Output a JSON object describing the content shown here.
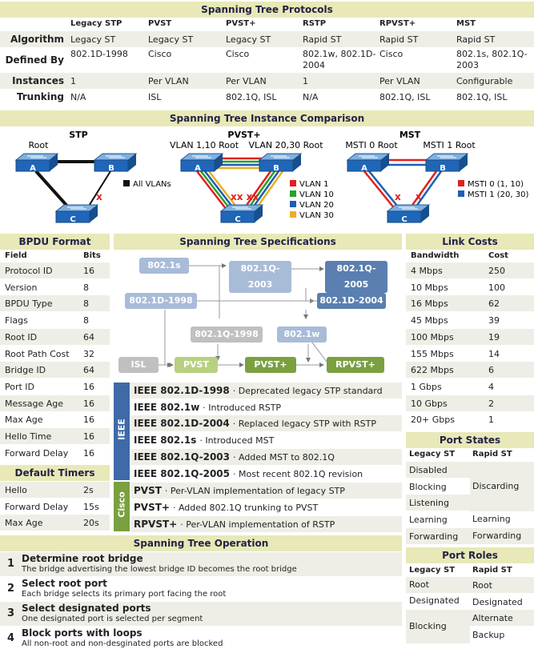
{
  "proto": {
    "title": "Spanning Tree Protocols",
    "cols": [
      "Legacy STP",
      "PVST",
      "PVST+",
      "RSTP",
      "RPVST+",
      "MST"
    ],
    "rows": [
      {
        "label": "Algorithm",
        "vals": [
          "Legacy ST",
          "Legacy ST",
          "Legacy ST",
          "Rapid ST",
          "Rapid ST",
          "Rapid ST"
        ]
      },
      {
        "label": "Defined By",
        "vals": [
          "802.1D-1998",
          "Cisco",
          "Cisco",
          "802.1w, 802.1D-2004",
          "Cisco",
          "802.1s, 802.1Q-2003"
        ]
      },
      {
        "label": "Instances",
        "vals": [
          "1",
          "Per VLAN",
          "Per VLAN",
          "1",
          "Per VLAN",
          "Configurable"
        ]
      },
      {
        "label": "Trunking",
        "vals": [
          "N/A",
          "ISL",
          "802.1Q, ISL",
          "N/A",
          "802.1Q, ISL",
          "802.1Q, ISL"
        ]
      }
    ]
  },
  "inst": {
    "title": "Spanning Tree Instance Comparison",
    "stp": {
      "title": "STP",
      "root": "Root",
      "legend": "All VLANs"
    },
    "pvst": {
      "title": "PVST+",
      "root1": "VLAN 1,10 Root",
      "root2": "VLAN 20,30 Root",
      "legend": [
        "VLAN 1",
        "VLAN 10",
        "VLAN 20",
        "VLAN 30"
      ]
    },
    "mst": {
      "title": "MST",
      "root1": "MSTI 0 Root",
      "root2": "MSTI 1 Root",
      "legend": [
        "MSTI 0 (1, 10)",
        "MSTI 1 (20, 30)"
      ]
    },
    "sw": [
      "A",
      "B",
      "C"
    ],
    "colors": {
      "red": "#e02020",
      "green": "#2aa02a",
      "blue": "#1e5fb0",
      "yellow": "#e8b020"
    }
  },
  "bpdu": {
    "title": "BPDU Format",
    "h1": "Field",
    "h2": "Bits",
    "rows": [
      [
        "Protocol ID",
        "16"
      ],
      [
        "Version",
        "8"
      ],
      [
        "BPDU Type",
        "8"
      ],
      [
        "Flags",
        "8"
      ],
      [
        "Root ID",
        "64"
      ],
      [
        "Root Path Cost",
        "32"
      ],
      [
        "Bridge ID",
        "64"
      ],
      [
        "Port ID",
        "16"
      ],
      [
        "Message Age",
        "16"
      ],
      [
        "Max Age",
        "16"
      ],
      [
        "Hello Time",
        "16"
      ],
      [
        "Forward Delay",
        "16"
      ]
    ]
  },
  "timers": {
    "title": "Default Timers",
    "rows": [
      [
        "Hello",
        "2s"
      ],
      [
        "Forward Delay",
        "15s"
      ],
      [
        "Max Age",
        "20s"
      ]
    ]
  },
  "spec": {
    "title": "Spanning Tree Specifications",
    "boxes": [
      "802.1s",
      "802.1Q-2003",
      "802.1Q-2005",
      "802.1D-1998",
      "802.1D-2004",
      "802.1Q-1998",
      "802.1w",
      "ISL",
      "PVST",
      "PVST+",
      "RPVST+"
    ],
    "ieee_label": "IEEE",
    "cisco_label": "Cisco",
    "items": [
      {
        "name": "IEEE 802.1D-1998",
        "desc": "· Deprecated legacy STP standard"
      },
      {
        "name": "IEEE 802.1w",
        "desc": "· Introduced RSTP"
      },
      {
        "name": "IEEE 802.1D-2004",
        "desc": "· Replaced legacy STP with RSTP"
      },
      {
        "name": "IEEE 802.1s",
        "desc": "· Introduced MST"
      },
      {
        "name": "IEEE 802.1Q-2003",
        "desc": "· Added MST to 802.1Q"
      },
      {
        "name": "IEEE 802.1Q-2005",
        "desc": "· Most recent 802.1Q revision"
      },
      {
        "name": "PVST",
        "desc": "· Per-VLAN implementation of legacy STP"
      },
      {
        "name": "PVST+",
        "desc": "· Added 802.1Q trunking to PVST"
      },
      {
        "name": "RPVST+",
        "desc": "· Per-VLAN implementation of RSTP"
      }
    ]
  },
  "costs": {
    "title": "Link Costs",
    "h1": "Bandwidth",
    "h2": "Cost",
    "rows": [
      [
        "4 Mbps",
        "250"
      ],
      [
        "10 Mbps",
        "100"
      ],
      [
        "16 Mbps",
        "62"
      ],
      [
        "45 Mbps",
        "39"
      ],
      [
        "100 Mbps",
        "19"
      ],
      [
        "155 Mbps",
        "14"
      ],
      [
        "622 Mbps",
        "6"
      ],
      [
        "1 Gbps",
        "4"
      ],
      [
        "10 Gbps",
        "2"
      ],
      [
        "20+ Gbps",
        "1"
      ]
    ]
  },
  "states": {
    "title": "Port States",
    "h1": "Legacy ST",
    "h2": "Rapid ST",
    "left": [
      "Disabled",
      "Blocking",
      "Listening",
      "Learning",
      "Forwarding"
    ],
    "right": [
      "Discarding",
      "Learning",
      "Forwarding"
    ]
  },
  "roles": {
    "title": "Port Roles",
    "h1": "Legacy ST",
    "h2": "Rapid ST",
    "left": [
      "Root",
      "Designated",
      "Blocking"
    ],
    "right": [
      "Root",
      "Designated",
      "Alternate",
      "Backup"
    ]
  },
  "op": {
    "title": "Spanning Tree Operation",
    "steps": [
      {
        "n": "1",
        "t": "Determine root bridge",
        "d": "The bridge advertising the lowest bridge ID becomes the root bridge"
      },
      {
        "n": "2",
        "t": "Select root port",
        "d": "Each bridge selects its primary port facing the root"
      },
      {
        "n": "3",
        "t": "Select designated ports",
        "d": "One designated port is selected per segment"
      },
      {
        "n": "4",
        "t": "Block ports with loops",
        "d": "All non-root and non-desginated ports are blocked"
      }
    ]
  }
}
